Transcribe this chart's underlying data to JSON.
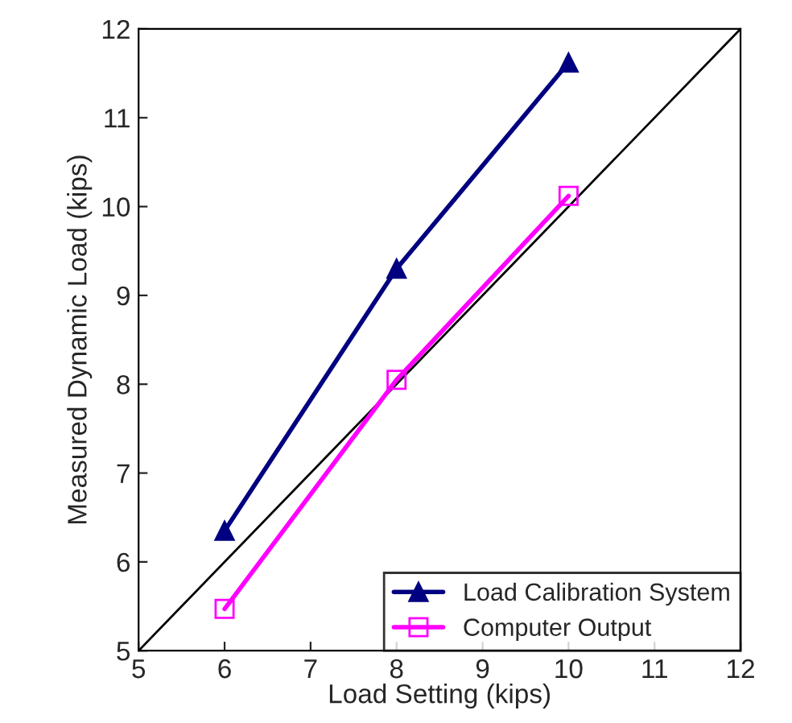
{
  "chart_data": {
    "type": "line",
    "xlabel": "Load Setting (kips)",
    "ylabel": "Measured Dynamic Load (kips)",
    "xlim": [
      5,
      12
    ],
    "ylim": [
      5,
      12
    ],
    "xticks": [
      5,
      6,
      7,
      8,
      9,
      10,
      11,
      12
    ],
    "yticks": [
      5,
      6,
      7,
      8,
      9,
      10,
      11,
      12
    ],
    "grid": false,
    "legend": "bottom right",
    "series": [
      {
        "name": "Load Calibration System",
        "color": "#000080",
        "x": [
          6,
          8,
          10
        ],
        "values": [
          6.35,
          9.3,
          11.62
        ],
        "marker": "triangle"
      },
      {
        "name": "Computer Output",
        "color": "#ff00ff",
        "x": [
          6,
          8,
          10
        ],
        "values": [
          5.47,
          8.05,
          10.12
        ],
        "marker": "square"
      },
      {
        "color": "#000000",
        "x": [
          5,
          12
        ],
        "values": [
          5,
          12
        ],
        "marker": "none"
      }
    ]
  }
}
